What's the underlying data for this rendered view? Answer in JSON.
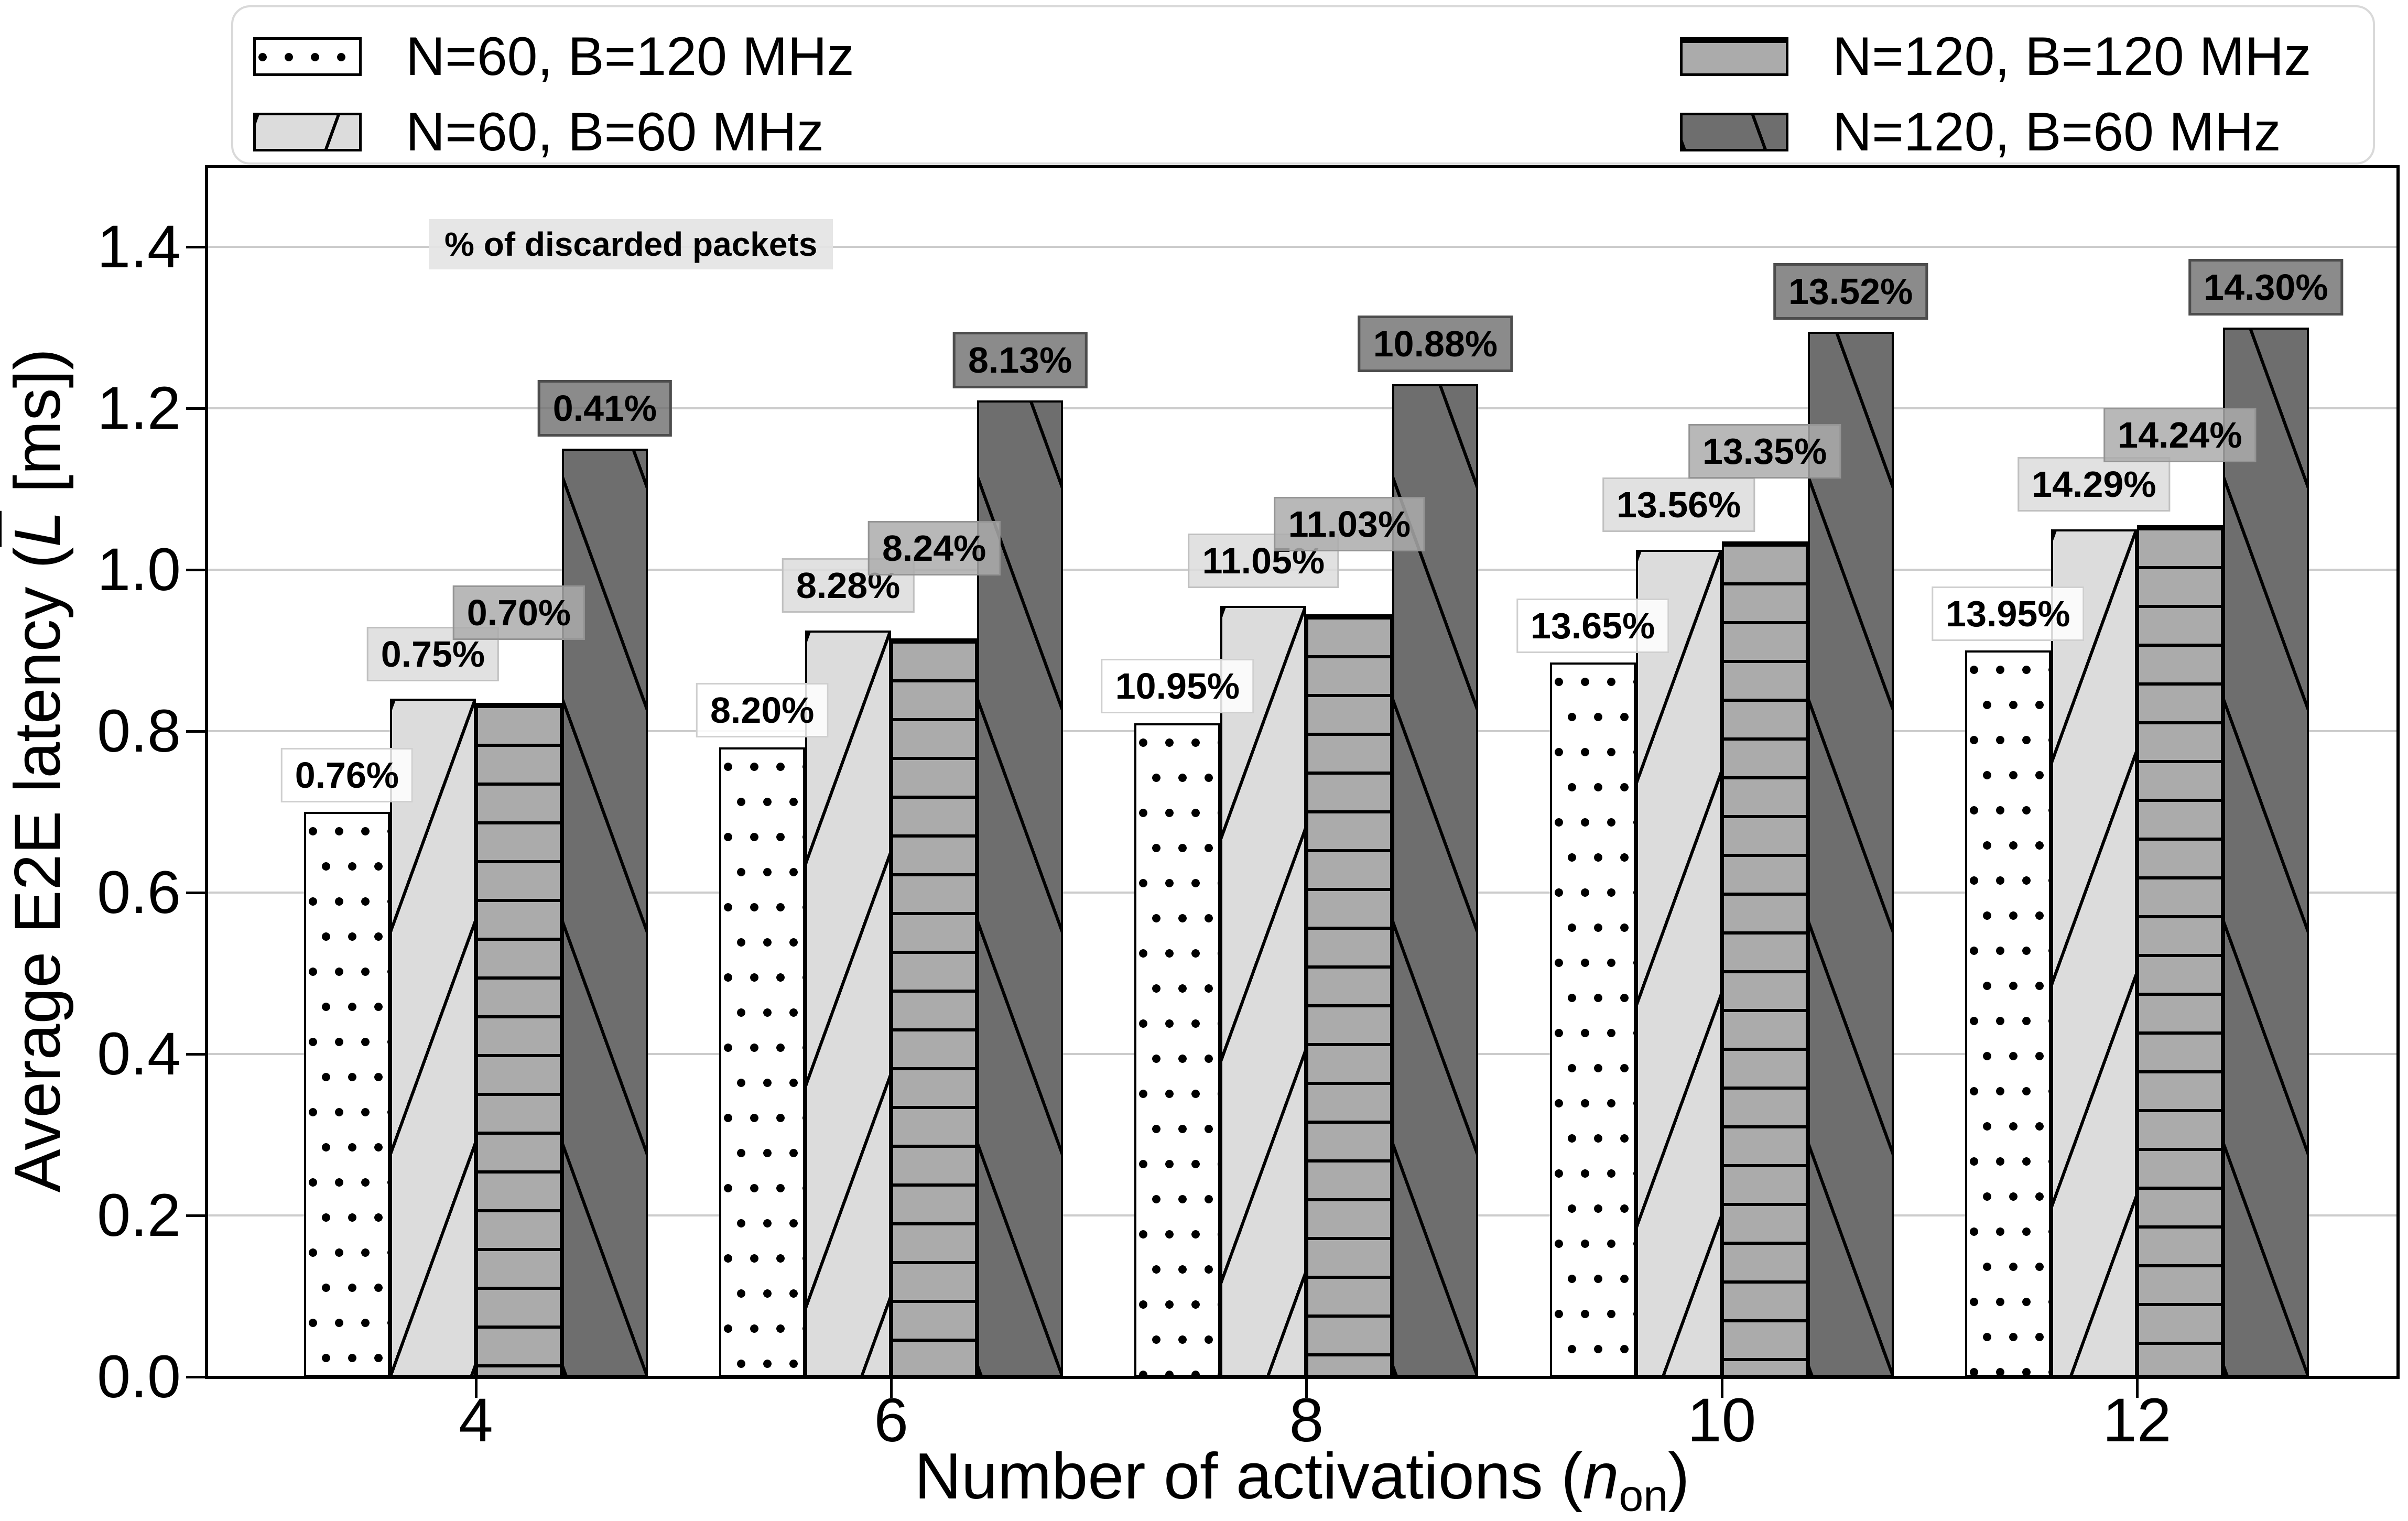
{
  "figure": {
    "annotation": "% of discarded packets",
    "legend": {
      "items": [
        {
          "label": "N=60, B=120 MHz",
          "pattern": "dots"
        },
        {
          "label": "N=60, B=60 MHz",
          "pattern": "diag-forward"
        },
        {
          "label": "N=120, B=120 MHz",
          "pattern": "horizontal"
        },
        {
          "label": "N=120, B=60 MHz",
          "pattern": "diag-back"
        }
      ]
    },
    "xlabel": {
      "prefix": "Number of activations (",
      "var": "n",
      "sub": "on",
      "suffix": ")"
    },
    "ylabel": {
      "prefix": "Average E2E latency (",
      "var": "L",
      "suffix": " [ms])"
    }
  },
  "chart_data": {
    "type": "bar",
    "title": "",
    "xlabel": "Number of activations (n_on)",
    "ylabel": "Average E2E latency (L̄ [ms])",
    "categories": [
      4,
      6,
      8,
      10,
      12
    ],
    "x_tick_labels": [
      "4",
      "6",
      "8",
      "10",
      "12"
    ],
    "yticks": [
      0.0,
      0.2,
      0.4,
      0.6,
      0.8,
      1.0,
      1.2,
      1.4
    ],
    "y_tick_labels": [
      "0.0",
      "0.2",
      "0.4",
      "0.6",
      "0.8",
      "1.0",
      "1.2",
      "1.4"
    ],
    "ylim": [
      0,
      1.5
    ],
    "grid": "horizontal gridlines on",
    "legend_position": "top, two columns",
    "bar_label_note": "% of discarded packets shown above each bar",
    "series": [
      {
        "name": "N=60, B=120 MHz",
        "pattern": "dots",
        "hatch": "..",
        "color": "#ffffff",
        "values": [
          0.7,
          0.78,
          0.81,
          0.885,
          0.9
        ],
        "bar_labels": [
          "0.76%",
          "8.20%",
          "10.95%",
          "13.65%",
          "13.95%"
        ],
        "label_bg": "rgba(255,255,255,0.85)",
        "label_border": "#cfcfcf",
        "label_border_px": 3,
        "label_gap": 0.012
      },
      {
        "name": "N=60, B=60 MHz",
        "pattern": "diag-forward",
        "hatch": "/",
        "color": "#dcdcdc",
        "values": [
          0.84,
          0.925,
          0.955,
          1.025,
          1.05
        ],
        "bar_labels": [
          "0.75%",
          "8.28%",
          "11.05%",
          "13.56%",
          "14.29%"
        ],
        "label_bg": "rgba(220,220,220,0.85)",
        "label_border": "#c0c0c0",
        "label_border_px": 3,
        "label_gap": 0.022
      },
      {
        "name": "N=120, B=120 MHz",
        "pattern": "horizontal",
        "hatch": "-",
        "color": "#ababab",
        "values": [
          0.835,
          0.915,
          0.945,
          1.035,
          1.055
        ],
        "bar_labels": [
          "0.70%",
          "8.24%",
          "11.03%",
          "13.35%",
          "14.24%"
        ],
        "label_bg": "rgba(171,171,171,0.85)",
        "label_border": "#949494",
        "label_border_px": 3,
        "label_gap": 0.078
      },
      {
        "name": "N=120, B=60 MHz",
        "pattern": "diag-back",
        "hatch": "\\",
        "color": "#6e6e6e",
        "values": [
          1.15,
          1.21,
          1.23,
          1.295,
          1.3
        ],
        "bar_labels": [
          "0.41%",
          "8.13%",
          "10.88%",
          "13.52%",
          "14.30%"
        ],
        "label_bg": "rgba(110,110,110,0.8)",
        "label_border": "#4d4d4d",
        "label_border_px": 5,
        "label_gap": 0.015
      }
    ]
  }
}
